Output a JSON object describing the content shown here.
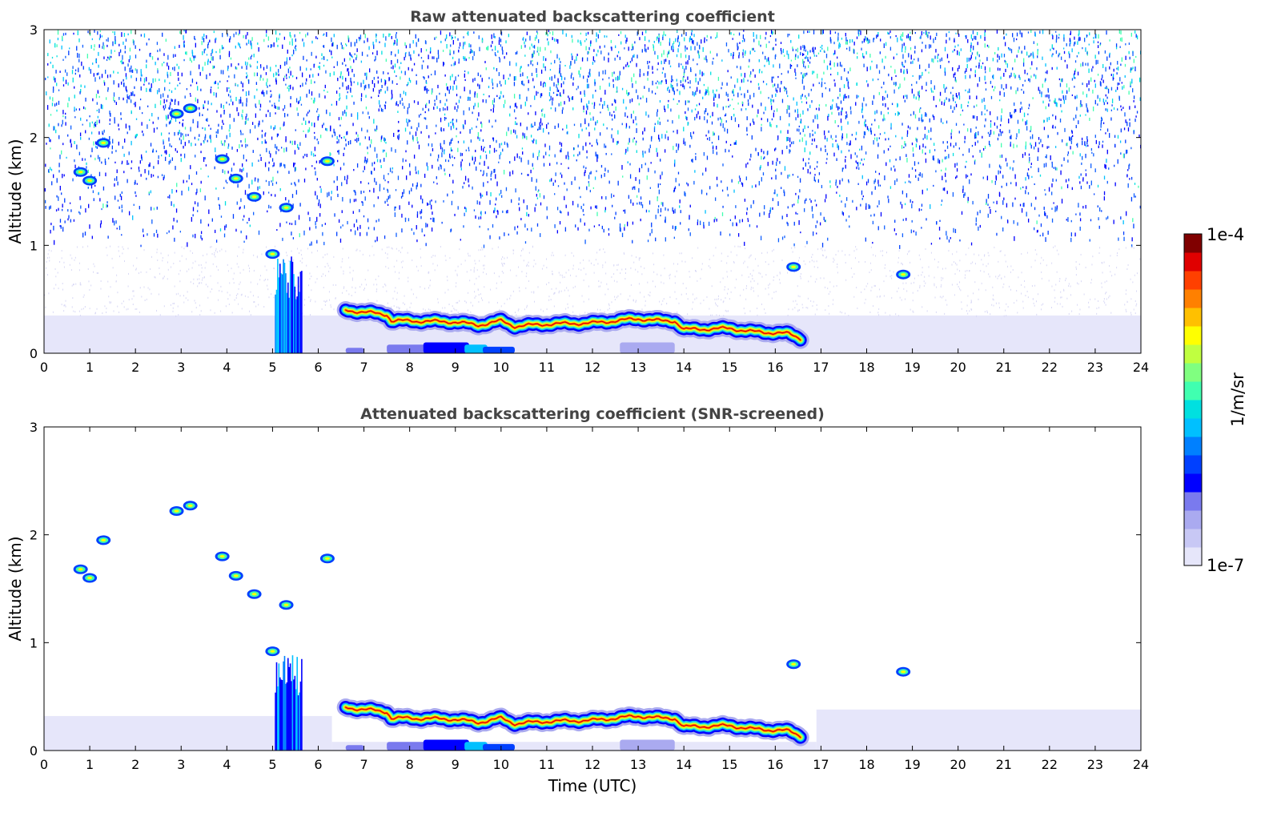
{
  "chart_data": [
    {
      "type": "heatmap",
      "id": "raw",
      "title": "Raw attenuated backscattering coefficient",
      "xlabel": "",
      "ylabel": "Altitude (km)",
      "xlim": [
        0,
        24
      ],
      "ylim": [
        0,
        3
      ],
      "xticks": [
        0,
        1,
        2,
        3,
        4,
        5,
        6,
        7,
        8,
        9,
        10,
        11,
        12,
        13,
        14,
        15,
        16,
        17,
        18,
        19,
        20,
        21,
        22,
        23,
        24
      ],
      "yticks": [
        0,
        1,
        2,
        3
      ],
      "layers": [
        {
          "name": "cloud-base-band",
          "points_x": [
            6.6,
            7.0,
            7.5,
            7.6,
            8.0,
            9.0,
            9.5,
            10.0,
            10.3,
            11.0,
            12.0,
            13.0,
            13.5,
            13.8,
            14.0,
            15.0,
            15.5,
            16.0,
            16.3,
            16.6
          ],
          "points_y": [
            0.4,
            0.38,
            0.36,
            0.3,
            0.3,
            0.29,
            0.26,
            0.3,
            0.25,
            0.27,
            0.28,
            0.32,
            0.3,
            0.3,
            0.22,
            0.23,
            0.2,
            0.19,
            0.18,
            0.13
          ]
        },
        {
          "name": "rain-column",
          "x_range": [
            5.05,
            5.65
          ],
          "y_range": [
            0,
            0.9
          ]
        },
        {
          "name": "aerosol-layer",
          "x_range": [
            0,
            24
          ],
          "y_range": [
            0,
            0.35
          ]
        },
        {
          "name": "upper-clouds",
          "points_x": [
            0.8,
            1.0,
            1.3,
            2.9,
            3.2,
            3.9,
            4.2,
            4.6,
            5.0,
            5.3,
            6.2,
            16.4,
            18.8
          ],
          "points_y": [
            1.68,
            1.6,
            1.95,
            2.22,
            2.27,
            1.8,
            1.62,
            1.45,
            0.92,
            1.35,
            1.78,
            0.8,
            0.73
          ]
        }
      ],
      "noise_above_km": 1.0
    },
    {
      "type": "heatmap",
      "id": "screened",
      "title": "Attenuated backscattering coefficient (SNR-screened)",
      "xlabel": "Time (UTC)",
      "ylabel": "Altitude (km)",
      "xlim": [
        0,
        24
      ],
      "ylim": [
        0,
        3
      ],
      "xticks": [
        0,
        1,
        2,
        3,
        4,
        5,
        6,
        7,
        8,
        9,
        10,
        11,
        12,
        13,
        14,
        15,
        16,
        17,
        18,
        19,
        20,
        21,
        22,
        23,
        24
      ],
      "yticks": [
        0,
        1,
        2,
        3
      ],
      "layers": [
        {
          "name": "cloud-base-band",
          "points_x": [
            6.6,
            7.0,
            7.5,
            7.6,
            8.0,
            9.0,
            9.5,
            10.0,
            10.3,
            11.0,
            12.0,
            13.0,
            13.5,
            13.8,
            14.0,
            15.0,
            15.5,
            16.0,
            16.3,
            16.6
          ],
          "points_y": [
            0.4,
            0.38,
            0.36,
            0.3,
            0.3,
            0.29,
            0.26,
            0.3,
            0.25,
            0.27,
            0.28,
            0.32,
            0.3,
            0.3,
            0.22,
            0.23,
            0.2,
            0.19,
            0.18,
            0.13
          ]
        },
        {
          "name": "rain-column",
          "x_range": [
            5.05,
            5.65
          ],
          "y_range": [
            0,
            0.9
          ]
        },
        {
          "name": "aerosol-layer",
          "x_range": [
            0,
            24
          ],
          "y_range": [
            0,
            0.35
          ]
        },
        {
          "name": "upper-clouds",
          "points_x": [
            0.8,
            1.0,
            1.3,
            2.9,
            3.2,
            3.9,
            4.2,
            4.6,
            5.0,
            5.3,
            6.2,
            16.4,
            18.8
          ],
          "points_y": [
            1.68,
            1.6,
            1.95,
            2.22,
            2.27,
            1.8,
            1.62,
            1.45,
            0.92,
            1.35,
            1.78,
            0.8,
            0.73
          ]
        }
      ],
      "noise_above_km": null
    }
  ],
  "colorbar": {
    "label": "1/m/sr",
    "min_label": "1e-7",
    "max_label": "1e-4",
    "colors": [
      "#e6e6fa",
      "#c8c8f5",
      "#aaaaf0",
      "#7a7aee",
      "#0000ff",
      "#0040ff",
      "#0080ff",
      "#00c0ff",
      "#00e0e0",
      "#40ffb0",
      "#80ff80",
      "#c0ff40",
      "#ffff00",
      "#ffc000",
      "#ff8000",
      "#ff4000",
      "#e00000",
      "#800000"
    ]
  }
}
